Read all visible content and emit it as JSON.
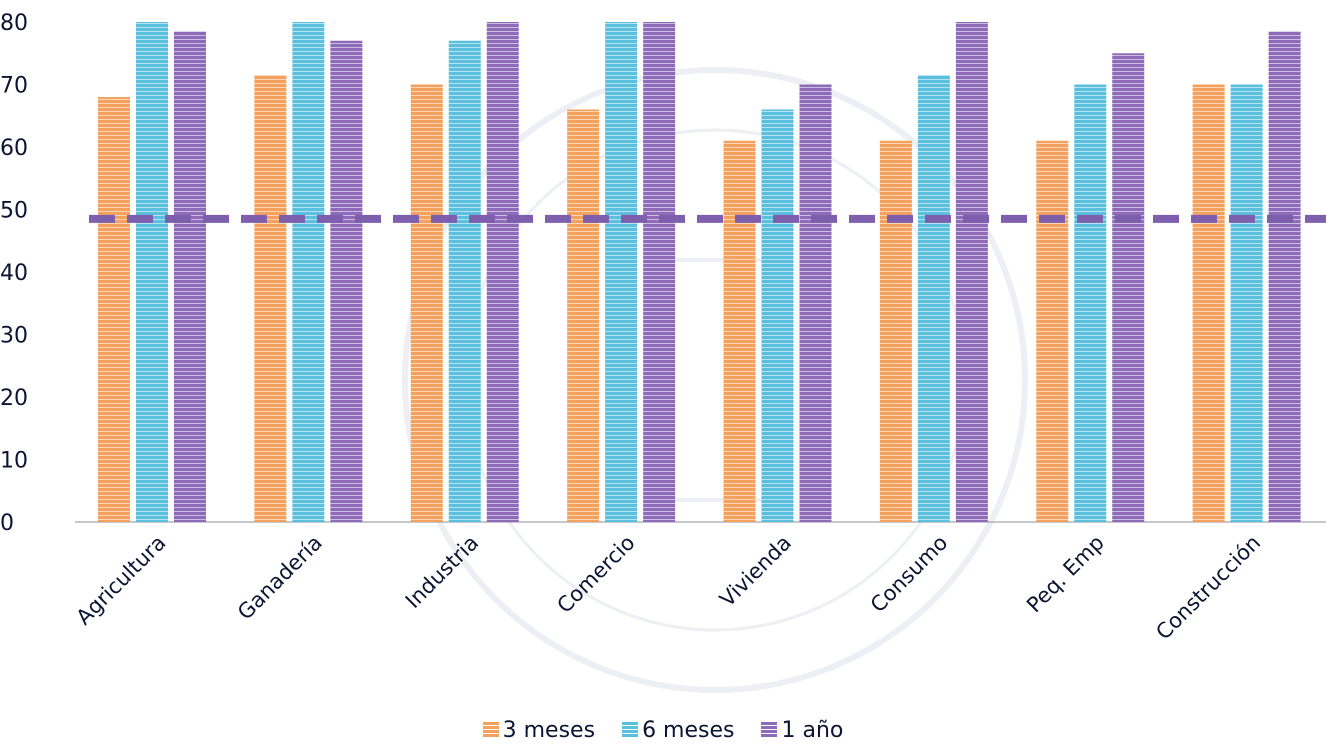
{
  "chart_data": {
    "type": "bar",
    "categories": [
      "Agricultura",
      "Ganadería",
      "Industria",
      "Comercio",
      "Vivienda",
      "Consumo",
      "Peq. Emp",
      "Construcción"
    ],
    "series": [
      {
        "name": "3 meses",
        "values": [
          68,
          71.5,
          70,
          66,
          61,
          61,
          61,
          70
        ],
        "color": "#F5A15E"
      },
      {
        "name": "6 meses",
        "values": [
          80,
          80,
          77,
          80,
          66,
          71.5,
          70,
          70
        ],
        "color": "#5BC0DE"
      },
      {
        "name": "1 año",
        "values": [
          78.5,
          77,
          80,
          80,
          70,
          80,
          75,
          78.5
        ],
        "color": "#8E6BB8"
      }
    ],
    "yticks": [
      0,
      10,
      20,
      30,
      40,
      50,
      60,
      70,
      80
    ],
    "ylim": [
      0,
      80
    ],
    "reference_line": {
      "value": 48.5,
      "color": "#7E5FAE",
      "style": "dashed"
    },
    "title": "",
    "xlabel": "",
    "ylabel": "",
    "legend_position": "bottom",
    "grid": false
  }
}
